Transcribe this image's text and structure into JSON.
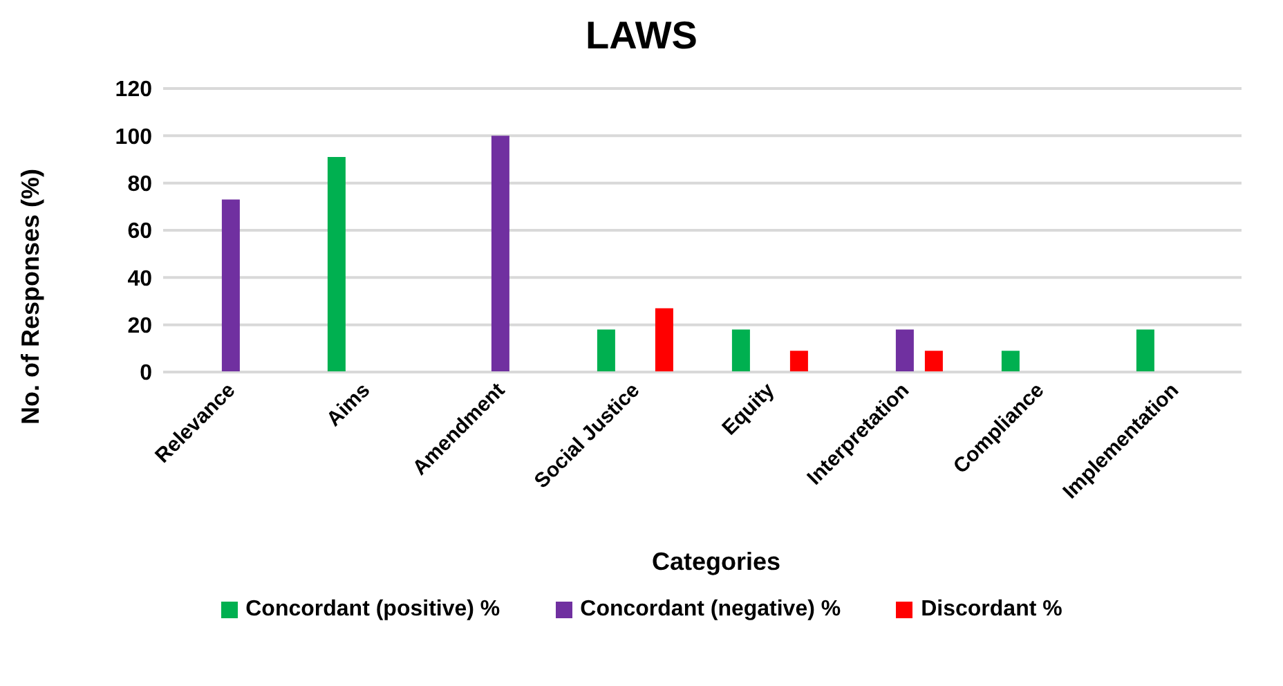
{
  "chart_data": {
    "type": "bar",
    "title": "LAWS",
    "xlabel": "Categories",
    "ylabel": "No. of Responses (%)",
    "categories": [
      "Relevance",
      "Aims",
      "Amendment",
      "Social Justice",
      "Equity",
      "Interpretation",
      "Compliance",
      "Implementation"
    ],
    "series": [
      {
        "name": "Concordant (positive) %",
        "color": "#00b050",
        "values": [
          0,
          91,
          0,
          18,
          18,
          0,
          9,
          18
        ]
      },
      {
        "name": "Concordant (negative) %",
        "color": "#7030a0",
        "values": [
          73,
          0,
          100,
          0,
          0,
          18,
          0,
          0
        ]
      },
      {
        "name": "Discordant %",
        "color": "#ff0000",
        "values": [
          0,
          0,
          0,
          27,
          9,
          9,
          0,
          0
        ]
      }
    ],
    "ylim": [
      0,
      120
    ],
    "yticks": [
      0,
      20,
      40,
      60,
      80,
      100,
      120
    ],
    "grid": "y",
    "legend": "bottom"
  }
}
